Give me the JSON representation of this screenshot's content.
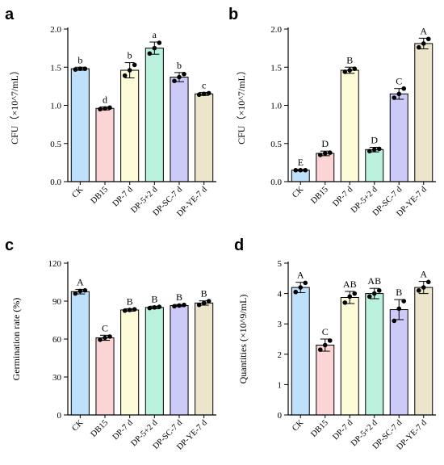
{
  "chart_data": [
    {
      "panel": "a",
      "type": "bar",
      "categories": [
        "CK",
        "DB15",
        "DP-7 d",
        "DP-5+2 d",
        "DP-SC-7 d",
        "DP-YE-7 d"
      ],
      "values": [
        1.48,
        0.96,
        1.46,
        1.75,
        1.37,
        1.15
      ],
      "errors": [
        0.02,
        0.02,
        0.1,
        0.08,
        0.06,
        0.02
      ],
      "points": [
        [
          1.47,
          1.48,
          1.48
        ],
        [
          0.95,
          0.96,
          0.97
        ],
        [
          1.39,
          1.46,
          1.53
        ],
        [
          1.68,
          1.75,
          1.82
        ],
        [
          1.32,
          1.37,
          1.41
        ],
        [
          1.14,
          1.15,
          1.16
        ]
      ],
      "letters": [
        "b",
        "d",
        "b",
        "a",
        "b",
        "c"
      ],
      "ylabel": "CFU（×10^7/mL）",
      "ylim": [
        0,
        2.0
      ],
      "yticks": [
        "0.0",
        "0.5",
        "1.0",
        "1.5",
        "2.0"
      ]
    },
    {
      "panel": "b",
      "type": "bar",
      "categories": [
        "CK",
        "DB15",
        "DP-7 d",
        "DP-5+2 d",
        "DP-SC-7 d",
        "DP-YE-7 d"
      ],
      "values": [
        0.15,
        0.37,
        1.46,
        0.42,
        1.15,
        1.81
      ],
      "errors": [
        0.01,
        0.03,
        0.04,
        0.03,
        0.07,
        0.07
      ],
      "points": [
        [
          0.15,
          0.15,
          0.15
        ],
        [
          0.35,
          0.37,
          0.38
        ],
        [
          1.44,
          1.46,
          1.48
        ],
        [
          0.4,
          0.42,
          0.43
        ],
        [
          1.1,
          1.15,
          1.22
        ],
        [
          1.76,
          1.81,
          1.87
        ]
      ],
      "letters": [
        "E",
        "D",
        "B",
        "D",
        "C",
        "A"
      ],
      "ylabel": "CFU（×10^7/mL）",
      "ylim": [
        0,
        2.0
      ],
      "yticks": [
        "0.0",
        "0.5",
        "1.0",
        "1.5",
        "2.0"
      ]
    },
    {
      "panel": "c",
      "type": "bar",
      "categories": [
        "CK",
        "DB15",
        "DP-7 d",
        "DP-5+2 d",
        "DP-SC-7 d",
        "DP-YE-7 d"
      ],
      "values": [
        97.5,
        61,
        83,
        85,
        86.5,
        88.5
      ],
      "errors": [
        1.8,
        2.0,
        1.0,
        1.0,
        0.8,
        1.7
      ],
      "points": [
        [
          96,
          98,
          98.5
        ],
        [
          59.5,
          61,
          62
        ],
        [
          82.5,
          83,
          83.5
        ],
        [
          84.5,
          85,
          85.5
        ],
        [
          86,
          86.5,
          87
        ],
        [
          87,
          88.5,
          90
        ]
      ],
      "letters": [
        "A",
        "C",
        "B",
        "B",
        "B",
        "B"
      ],
      "ylabel": "Germination rate (%)",
      "ylim": [
        0,
        120
      ],
      "yticks": [
        "0",
        "30",
        "60",
        "90",
        "120"
      ]
    },
    {
      "panel": "d",
      "type": "bar",
      "categories": [
        "CK",
        "DB15",
        "DP-7 d",
        "DP-5+2 d",
        "DP-SC-7 d",
        "DP-YE-7 d"
      ],
      "values": [
        4.2,
        2.3,
        3.87,
        4.0,
        3.47,
        4.2
      ],
      "errors": [
        0.17,
        0.2,
        0.2,
        0.17,
        0.33,
        0.2
      ],
      "points": [
        [
          4.05,
          4.2,
          4.35
        ],
        [
          2.15,
          2.3,
          2.45
        ],
        [
          3.7,
          3.9,
          4.0
        ],
        [
          3.9,
          4.0,
          4.1
        ],
        [
          3.1,
          3.5,
          3.75
        ],
        [
          4.1,
          4.2,
          4.38
        ]
      ],
      "letters": [
        "A",
        "C",
        "AB",
        "AB",
        "B",
        "A"
      ],
      "ylabel": "Quantities (×10^9/mL)",
      "ylim": [
        0,
        5
      ],
      "yticks": [
        "0",
        "1",
        "2",
        "3",
        "4",
        "5"
      ]
    }
  ],
  "colors": [
    "#bfe0fb",
    "#fbd4d6",
    "#fdfbd8",
    "#b9f1dd",
    "#cccaf6",
    "#ece5cb"
  ],
  "icons": []
}
